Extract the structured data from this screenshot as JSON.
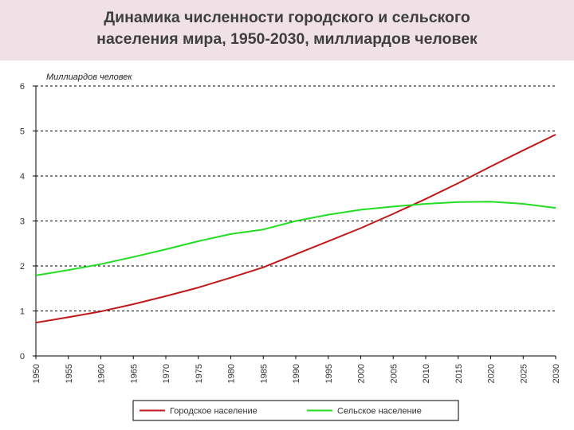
{
  "title": {
    "line1": "Динамика численности городского и сельского",
    "line2": "населения мира, 1950-2030, миллиардов человек"
  },
  "chart_data": {
    "type": "line",
    "ylabel": "Миллиардов человек",
    "xlabel": "",
    "xlim": [
      1950,
      2030
    ],
    "ylim": [
      0,
      6
    ],
    "x_ticks": [
      "1950",
      "1955",
      "1960",
      "1965",
      "1970",
      "1975",
      "1980",
      "1985",
      "1990",
      "1995",
      "2000",
      "2005",
      "2010",
      "2015",
      "2020",
      "2025",
      "2030"
    ],
    "y_ticks": [
      "0",
      "1",
      "2",
      "3",
      "4",
      "5",
      "6"
    ],
    "grid": "horizontal dashed",
    "legend_position": "bottom",
    "x": [
      1950,
      1955,
      1960,
      1965,
      1970,
      1975,
      1980,
      1985,
      1990,
      1995,
      2000,
      2005,
      2010,
      2015,
      2020,
      2025,
      2030
    ],
    "series": [
      {
        "name": "Городское население",
        "color": "#c01818",
        "values": [
          0.74,
          0.86,
          0.99,
          1.15,
          1.33,
          1.52,
          1.74,
          1.97,
          2.26,
          2.55,
          2.84,
          3.16,
          3.49,
          3.84,
          4.21,
          4.57,
          4.92
        ]
      },
      {
        "name": "Сельское население",
        "color": "#22dd22",
        "values": [
          1.79,
          1.91,
          2.04,
          2.2,
          2.37,
          2.55,
          2.71,
          2.81,
          3.0,
          3.14,
          3.25,
          3.32,
          3.38,
          3.42,
          3.43,
          3.38,
          3.29
        ]
      }
    ]
  }
}
